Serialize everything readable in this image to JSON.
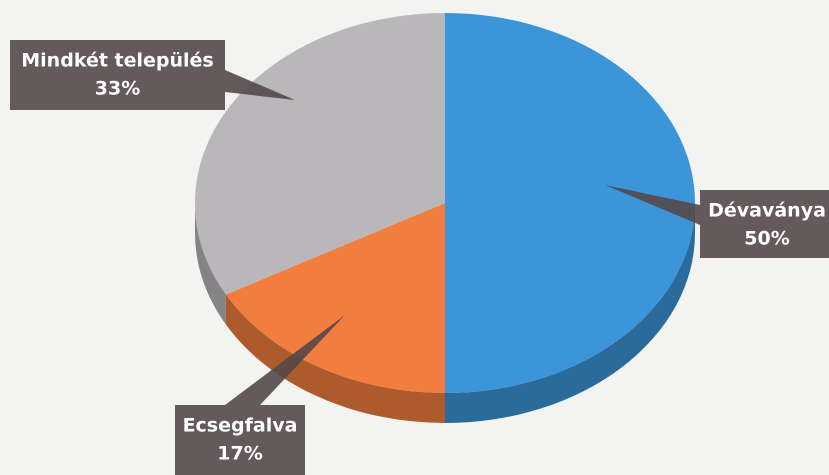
{
  "chart_data": {
    "type": "pie",
    "categories": [
      "Dévaványa",
      "Ecsegfalva",
      "Mindkét település"
    ],
    "values": [
      50,
      17,
      33
    ],
    "value_labels": [
      "50%",
      "17%",
      "33%"
    ],
    "colors": [
      "#3d95d9",
      "#f17d3e",
      "#bab7ba"
    ]
  }
}
